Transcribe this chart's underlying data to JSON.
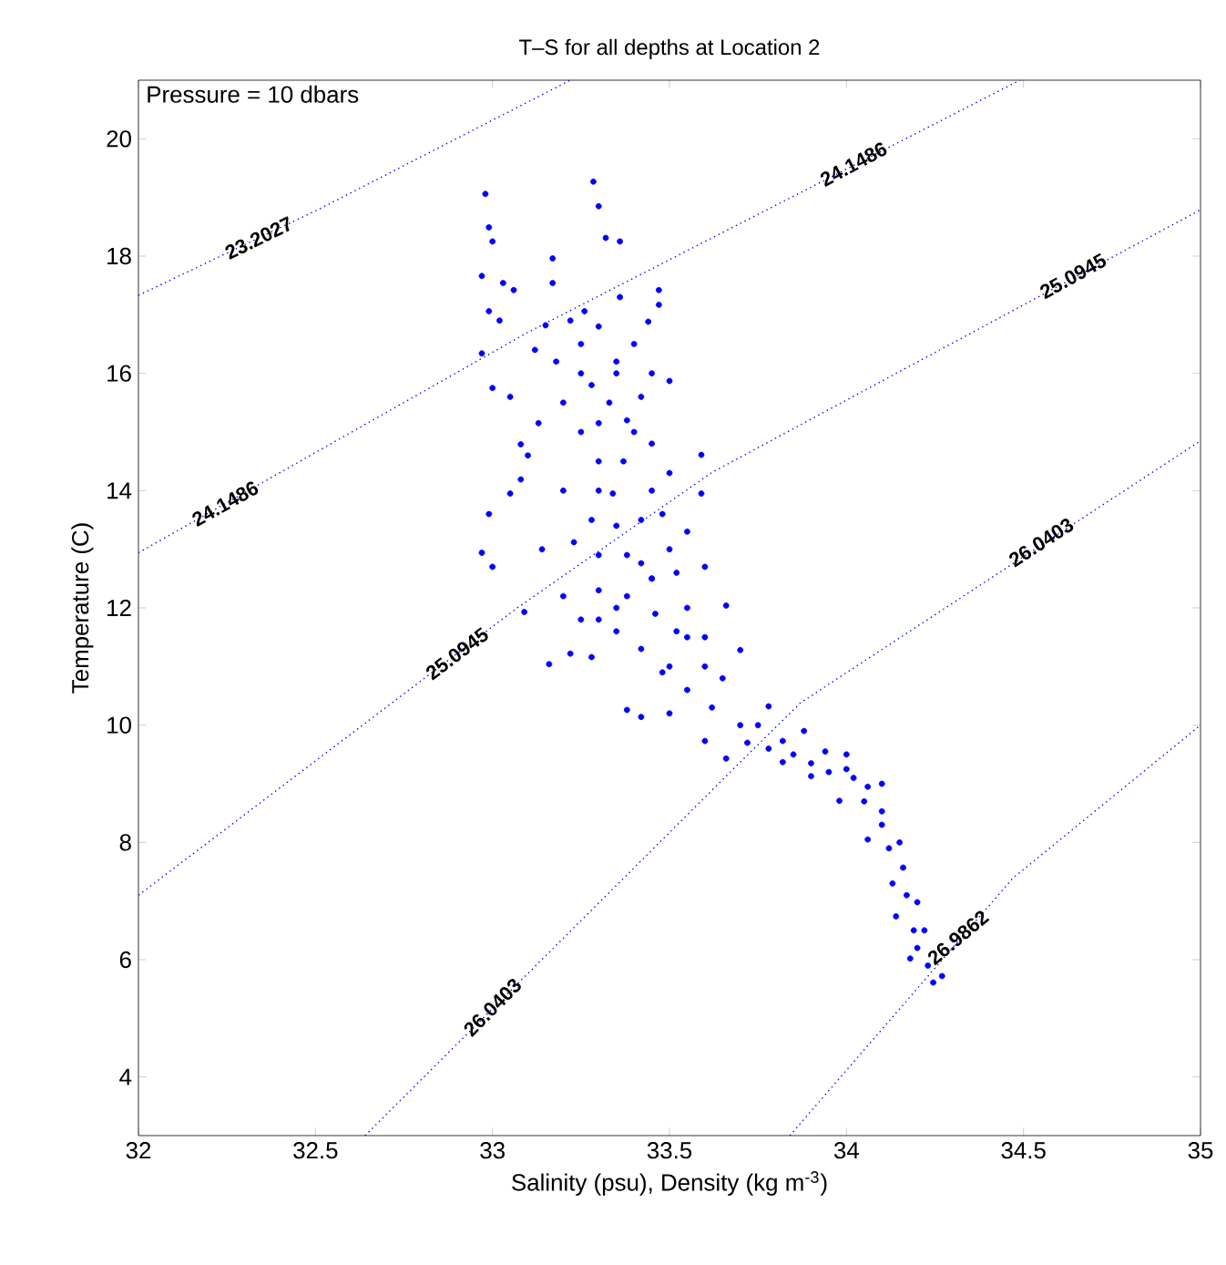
{
  "chart_data": {
    "type": "scatter",
    "title": "T–S for all depths at Location 2",
    "xlabel": "Salinity (psu), Density (kg m$^{-3}$)",
    "ylabel": "Temperature (C)",
    "xlim": [
      32,
      35
    ],
    "ylim": [
      3,
      21
    ],
    "xticks": [
      32,
      32.5,
      33,
      33.5,
      34,
      34.5,
      35
    ],
    "yticks": [
      4,
      6,
      8,
      10,
      12,
      14,
      16,
      18,
      20
    ],
    "grid": false,
    "series": [
      {
        "color": "#0000ff",
        "marker": "circle",
        "x": [
          33.25,
          33.3,
          33.35,
          33.28,
          33.33,
          33.38,
          33.42,
          33.25,
          33.3,
          33.37,
          33.45,
          33.5,
          33.28,
          33.35,
          33.42,
          33.48,
          33.55,
          33.3,
          33.38,
          33.45,
          33.52,
          33.6,
          33.3,
          33.38,
          33.46,
          33.52,
          33.6,
          33.35,
          33.42,
          33.48,
          33.55,
          33.62,
          33.7,
          33.72,
          33.78,
          33.85,
          33.9,
          33.95,
          34.02,
          34.05,
          34.1,
          34.12,
          34.13,
          34.17,
          34.19,
          34.2,
          34.23,
          33.45,
          33.22,
          33.18,
          33.12,
          33.05,
          33.02,
          33.1,
          33.2,
          33.2,
          33.25,
          32.98,
          33.285,
          33.3,
          33.36,
          33.32,
          32.99,
          33.0,
          33.17,
          33.17,
          33.03,
          32.97,
          33.06,
          33.47,
          33.47,
          32.99,
          32.97,
          33.0,
          33.15,
          33.26,
          33.36,
          33.44,
          33.5,
          33.08,
          33.13,
          33.08,
          33.59,
          32.97,
          33.0,
          32.99,
          33.05,
          33.14,
          33.23,
          33.59,
          33.66,
          33.3,
          33.34,
          33.42,
          33.09,
          33.16,
          33.22,
          33.28,
          33.38,
          33.42,
          33.5,
          33.6,
          33.66,
          33.82,
          33.88,
          33.78,
          33.7,
          34.0,
          33.98,
          34.06,
          34.1,
          34.06,
          34.16,
          34.2,
          34.14,
          34.22,
          34.18,
          34.245,
          34.27,
          33.9,
          33.82,
          33.94,
          33.4,
          33.45,
          33.5,
          33.55,
          33.5,
          33.6,
          33.3,
          33.35,
          33.4,
          33.25,
          33.35,
          33.45,
          33.55,
          33.65,
          33.75,
          34.0,
          34.1,
          34.15,
          33.2,
          33.3
        ],
        "values": [
          16.5,
          16.8,
          16.2,
          15.8,
          15.5,
          15.2,
          15.6,
          15.0,
          14.5,
          14.5,
          14.8,
          14.3,
          13.5,
          13.4,
          13.5,
          13.6,
          13.3,
          12.9,
          12.9,
          12.5,
          12.6,
          12.7,
          12.3,
          12.2,
          11.9,
          11.6,
          11.5,
          11.6,
          11.3,
          10.9,
          10.6,
          10.3,
          10.0,
          9.7,
          9.6,
          9.5,
          9.35,
          9.2,
          9.1,
          8.7,
          8.3,
          7.9,
          7.3,
          7.1,
          6.5,
          6.2,
          5.9,
          16.0,
          16.9,
          16.2,
          16.4,
          15.6,
          16.9,
          14.6,
          14.0,
          12.2,
          11.8,
          19.06,
          19.27,
          18.85,
          18.25,
          18.31,
          18.49,
          18.25,
          17.96,
          17.54,
          17.54,
          17.66,
          17.42,
          17.42,
          17.17,
          17.06,
          16.34,
          15.75,
          16.82,
          17.06,
          17.3,
          16.88,
          15.87,
          14.79,
          15.15,
          14.19,
          14.61,
          12.94,
          12.7,
          13.6,
          13.95,
          13.0,
          13.12,
          13.95,
          12.04,
          15.15,
          13.95,
          12.76,
          11.93,
          11.04,
          11.22,
          11.16,
          10.26,
          10.14,
          10.2,
          9.73,
          9.43,
          9.37,
          9.9,
          10.32,
          11.28,
          9.25,
          8.71,
          8.95,
          8.53,
          8.05,
          7.57,
          6.98,
          6.74,
          6.5,
          6.02,
          5.61,
          5.72,
          9.13,
          9.73,
          9.55,
          15.0,
          14.0,
          13.0,
          12.0,
          11.0,
          11.0,
          14.0,
          16.0,
          16.5,
          16.0,
          12.0,
          12.5,
          11.5,
          10.8,
          10.0,
          9.5,
          9.0,
          8.0,
          15.5,
          11.8
        ]
      },
      {
        "type": "line",
        "color": "#0000ff",
        "line_style": "dotted",
        "marker": "none",
        "x": [
          32,
          32.51,
          33.22
        ],
        "values": [
          17.33,
          18.8,
          21
        ]
      },
      {
        "type": "line",
        "color": "#0000ff",
        "line_style": "dotted",
        "marker": "none",
        "x": [
          32,
          33.1,
          34.49
        ],
        "values": [
          12.94,
          16.7,
          21
        ]
      },
      {
        "type": "line",
        "color": "#0000ff",
        "line_style": "dotted",
        "marker": "none",
        "x": [
          32,
          33.07,
          33.62,
          35
        ],
        "values": [
          7.1,
          12.0,
          14.31,
          18.79
        ]
      },
      {
        "type": "line",
        "color": "#0000ff",
        "line_style": "dotted",
        "marker": "none",
        "x": [
          32.64,
          33.7,
          33.87,
          35
        ],
        "values": [
          3,
          9.37,
          10.38,
          14.85
        ]
      },
      {
        "type": "line",
        "color": "#0000ff",
        "line_style": "dotted",
        "marker": "none",
        "x": [
          33.84,
          34.47,
          35
        ],
        "values": [
          3,
          7.39,
          10.0
        ]
      }
    ],
    "annotations": [
      "Pressure = 10 dbars",
      {
        "text": "23.2027",
        "x": 32.34,
        "y": 18.31
      },
      {
        "text": "24.1486",
        "x": 32.245,
        "y": 13.78
      },
      {
        "text": "24.1486",
        "x": 34.02,
        "y": 19.57
      },
      {
        "text": "25.0945",
        "x": 32.9,
        "y": 11.22
      },
      {
        "text": "25.0945",
        "x": 34.64,
        "y": 17.66
      },
      {
        "text": "26.0403",
        "x": 33.0,
        "y": 5.19
      },
      {
        "text": "26.0403",
        "x": 34.55,
        "y": 13.12
      },
      {
        "text": "26.9862",
        "x": 34.315,
        "y": 6.38
      }
    ]
  }
}
